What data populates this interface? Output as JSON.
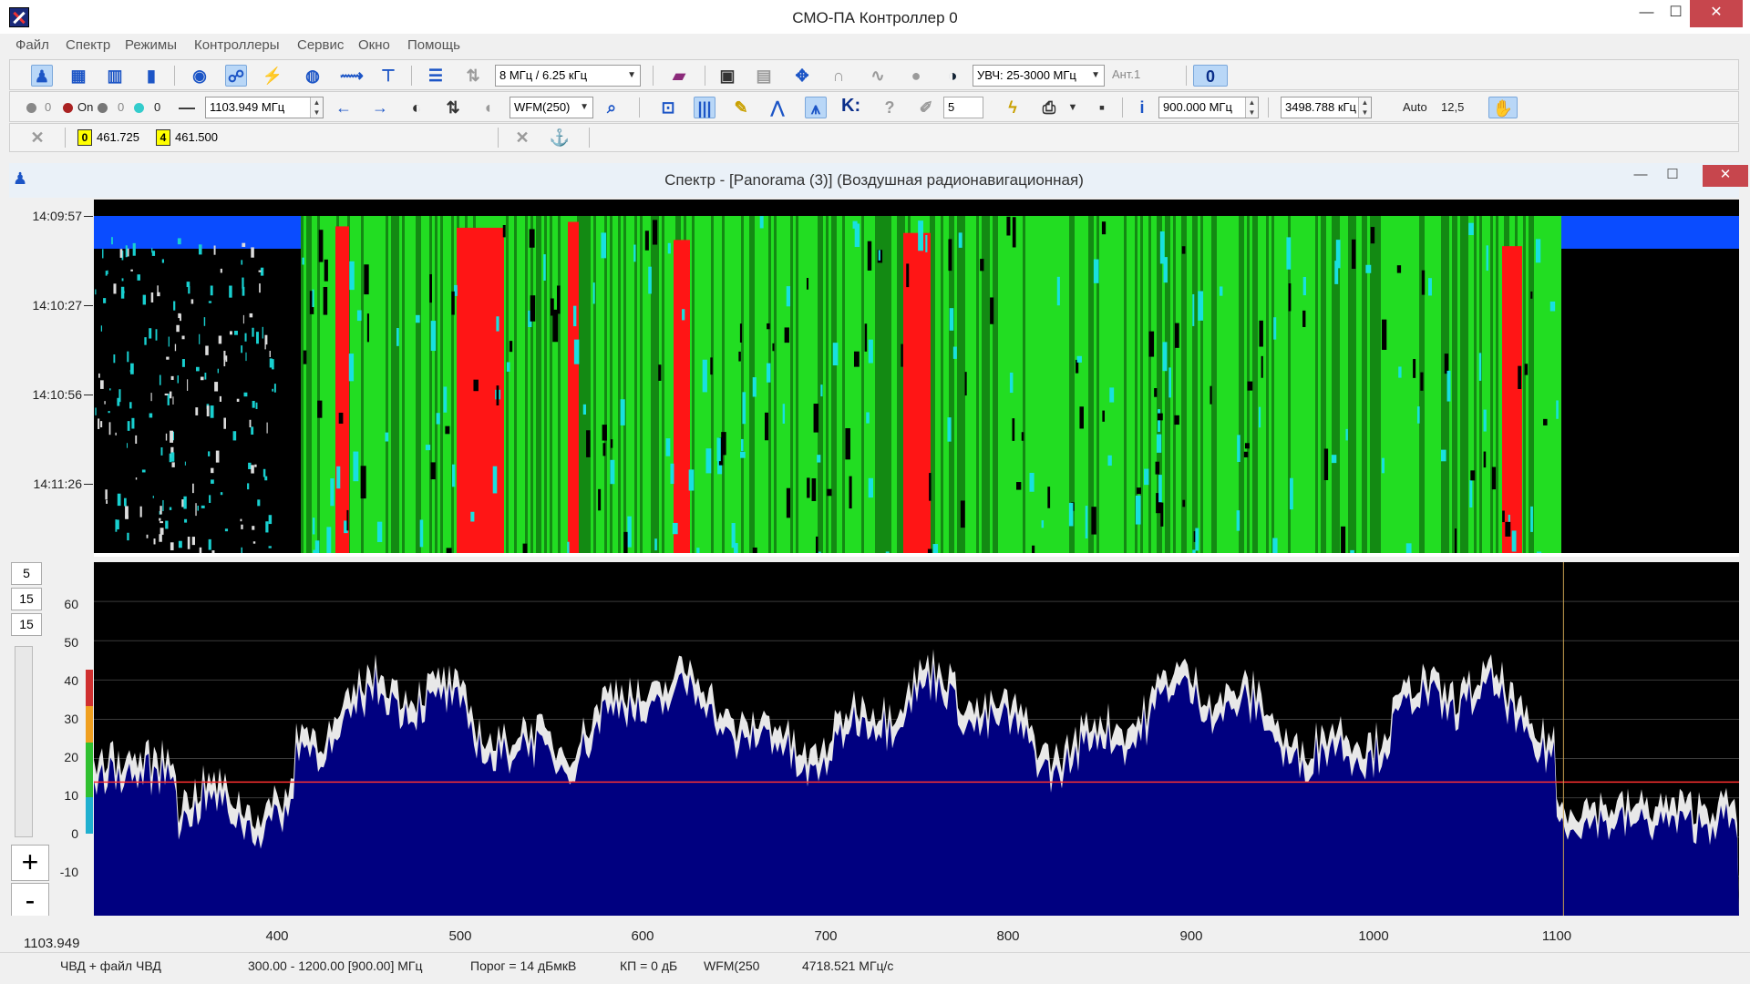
{
  "app": {
    "title": "СМО-ПА Контроллер 0"
  },
  "menu": [
    "Файл",
    "Спектр",
    "Режимы",
    "Контроллеры",
    "Сервис",
    "Окно",
    "Помощь"
  ],
  "toolbar1": {
    "bandwidth_combo": "8 МГц / 6.25 кГц",
    "uvch_combo": "УВЧ: 25-3000 МГц",
    "antenna_field": "Ант.1",
    "zero_button": "0"
  },
  "toolbar2": {
    "state_0": "0",
    "state_on": "On",
    "state_0b": "0",
    "state_0c": "0",
    "frequency_field": "1103.949 МГц",
    "demod_combo": "WFM(250)",
    "k_label": "K:",
    "count_field": "5",
    "span_field": "900.000 МГц",
    "step_field": "3498.788 кГц",
    "auto_label": "Auto",
    "auto_value": "12,5"
  },
  "toolbar3": {
    "marker0": {
      "id": "0",
      "value": "461.725"
    },
    "marker4": {
      "id": "4",
      "value": "461.500"
    }
  },
  "child_window": {
    "title": "Спектр - [Panorama (3)]     (Воздушная радионавигационная)"
  },
  "waterfall": {
    "time_labels": [
      "14:09:57",
      "14:10:27",
      "14:10:56",
      "14:11:26"
    ]
  },
  "spectrum": {
    "left_boxes": [
      "5",
      "15",
      "15"
    ],
    "y_ticks": [
      "60",
      "50",
      "40",
      "30",
      "20",
      "10",
      "0",
      "-10"
    ],
    "plus_label": "+",
    "minus_label": "-",
    "x_ticks": [
      "400",
      "500",
      "600",
      "700",
      "800",
      "900",
      "1000",
      "1100"
    ],
    "current_freq": "1103.949",
    "range_mhz": [
      300,
      1200
    ],
    "cursor_mhz": 1103.949,
    "threshold_db": 14,
    "colors": {
      "fill": "#000080",
      "envelope": "#e8e8e8",
      "edge": "#00ffff",
      "threshold": "#ff3030"
    }
  },
  "status": {
    "source": "ЧВД + файл ЧВД",
    "range": "300.00 - 1200.00  [900.00]  МГц",
    "threshold": "Порог = 14 дБмкВ",
    "gain": "КП = 0 дБ",
    "mode": "WFM(250",
    "speed": "4718.521 МГц/с"
  }
}
